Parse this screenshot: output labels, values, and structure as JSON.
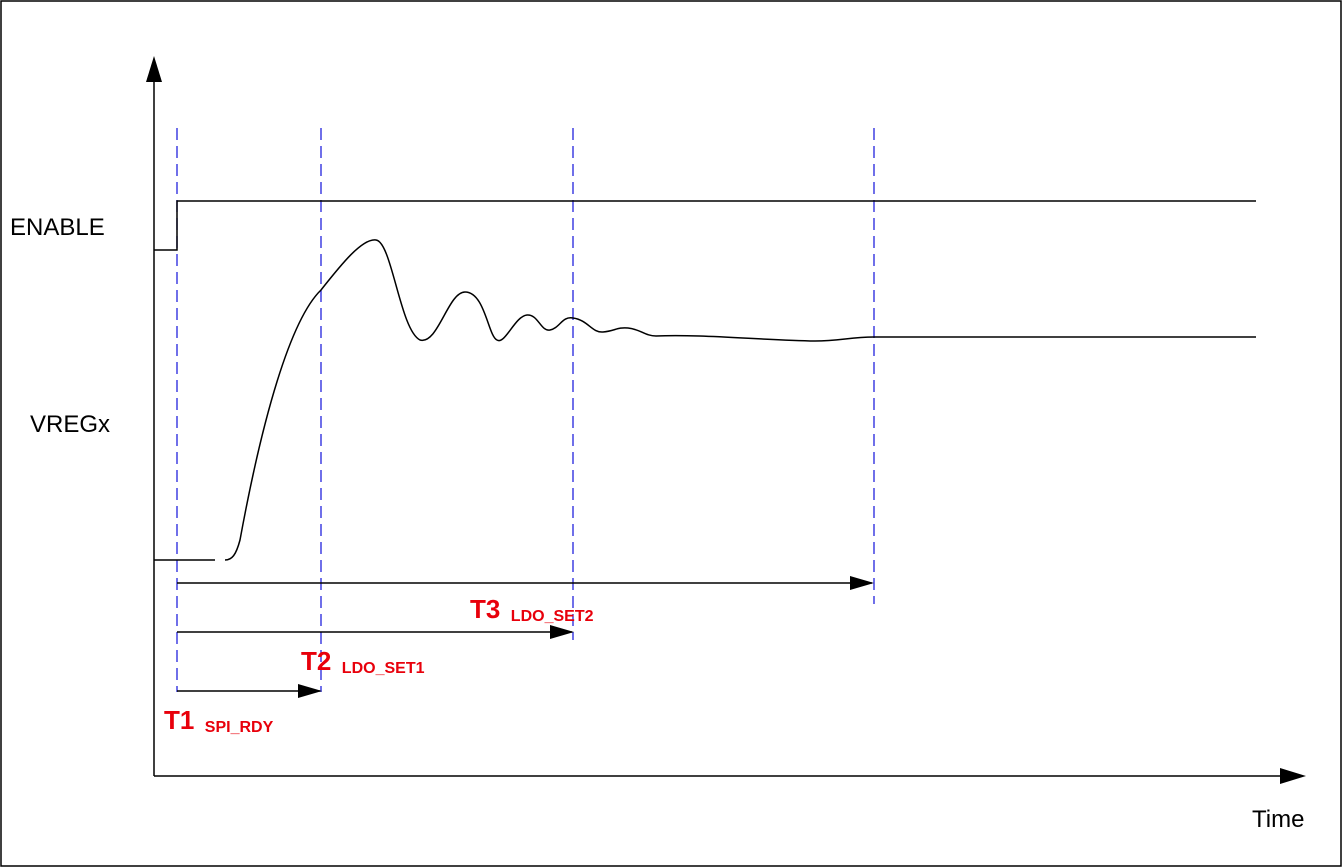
{
  "signals": {
    "enable_label": "ENABLE",
    "vreg_label": "VREGx"
  },
  "axis": {
    "x_label": "Time"
  },
  "timings": [
    {
      "main": "T1",
      "sub": "SPI_RDY"
    },
    {
      "main": "T2",
      "sub": "LDO_SET1"
    },
    {
      "main": "T3",
      "sub": "LDO_SET2"
    }
  ],
  "colors": {
    "marker": "#2222dd",
    "timing_label": "#e8000b",
    "trace": "#000000"
  }
}
